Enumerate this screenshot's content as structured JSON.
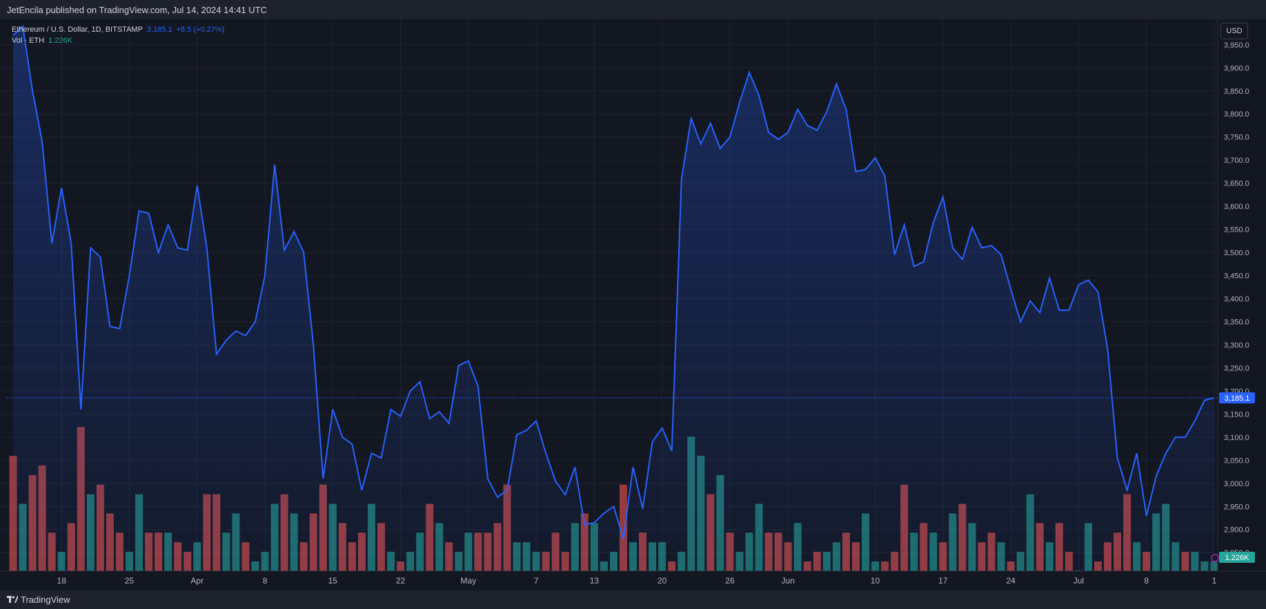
{
  "header": {
    "published": "JetEncila published on TradingView.com, Jul 14, 2024 14:41 UTC"
  },
  "legend": {
    "symbol": "Ethereum / U.S. Dollar, 1D, BITSTAMP",
    "price": "3,185.1",
    "change": "+8.5 (+0.27%)",
    "volume_label": "Vol · ETH",
    "volume_value": "1.226K"
  },
  "currency_button": "USD",
  "footer": {
    "brand": "TradingView"
  },
  "colors": {
    "line": "#2962ff",
    "vol_up": "#26a69a",
    "vol_down": "#ef5350",
    "background": "#131722"
  },
  "chart_data": {
    "type": "area",
    "series": [
      {
        "name": "Ethereum / U.S. Dollar",
        "values": [
          3970,
          3990,
          3850,
          3740,
          3520,
          3640,
          3520,
          3160,
          3510,
          3490,
          3340,
          3335,
          3450,
          3590,
          3585,
          3500,
          3560,
          3510,
          3505,
          3645,
          3510,
          3280,
          3310,
          3330,
          3320,
          3350,
          3450,
          3690,
          3505,
          3545,
          3500,
          3300,
          3010,
          3160,
          3100,
          3085,
          2985,
          3065,
          3055,
          3160,
          3145,
          3200,
          3220,
          3140,
          3155,
          3130,
          3255,
          3265,
          3210,
          3010,
          2970,
          2985,
          3105,
          3115,
          3135,
          3065,
          3005,
          2975,
          3035,
          2910,
          2915,
          2935,
          2950,
          2880,
          3035,
          2945,
          3090,
          3120,
          3070,
          3660,
          3790,
          3735,
          3780,
          3725,
          3750,
          3825,
          3890,
          3840,
          3760,
          3745,
          3760,
          3810,
          3775,
          3765,
          3805,
          3865,
          3810,
          3675,
          3680,
          3705,
          3665,
          3495,
          3560,
          3470,
          3480,
          3565,
          3620,
          3510,
          3485,
          3555,
          3510,
          3515,
          3495,
          3420,
          3350,
          3395,
          3370,
          3445,
          3375,
          3375,
          3430,
          3440,
          3415,
          3290,
          3055,
          2985,
          3065,
          2930,
          3015,
          3065,
          3100,
          3100,
          3135,
          3180,
          3185
        ]
      },
      {
        "name": "Vol · ETH",
        "values": [
          12,
          7,
          10,
          11,
          4,
          2,
          5,
          15,
          8,
          9,
          6,
          4,
          2,
          8,
          4,
          4,
          4,
          3,
          2,
          3,
          8,
          8,
          4,
          6,
          3,
          1,
          2,
          7,
          8,
          6,
          3,
          6,
          9,
          7,
          5,
          3,
          4,
          7,
          5,
          2,
          1,
          2,
          4,
          7,
          5,
          3,
          2,
          4,
          4,
          4,
          5,
          9,
          3,
          3,
          2,
          2,
          4,
          2,
          5,
          6,
          5,
          1,
          2,
          9,
          3,
          4,
          3,
          3,
          1,
          2,
          14,
          12,
          8,
          10,
          4,
          2,
          4,
          7,
          4,
          4,
          3,
          5,
          1,
          2,
          2,
          3,
          4,
          3,
          6,
          1,
          1,
          2,
          9,
          4,
          5,
          4,
          3,
          6,
          7,
          5,
          3,
          4,
          3,
          1,
          2,
          8,
          5,
          3,
          5,
          2,
          0,
          5,
          1,
          3,
          4,
          8,
          3,
          2,
          6,
          7,
          3,
          2,
          2,
          1,
          1
        ],
        "direction": [
          "d",
          "u",
          "d",
          "d",
          "d",
          "u",
          "d",
          "d",
          "u",
          "d",
          "d",
          "d",
          "u",
          "u",
          "d",
          "d",
          "u",
          "d",
          "d",
          "u",
          "d",
          "d",
          "u",
          "u",
          "d",
          "u",
          "u",
          "u",
          "d",
          "u",
          "d",
          "d",
          "d",
          "u",
          "d",
          "d",
          "d",
          "u",
          "d",
          "u",
          "d",
          "u",
          "u",
          "d",
          "u",
          "d",
          "u",
          "u",
          "d",
          "d",
          "d",
          "d",
          "u",
          "u",
          "u",
          "d",
          "d",
          "d",
          "u",
          "d",
          "u",
          "u",
          "u",
          "d",
          "u",
          "d",
          "u",
          "u",
          "d",
          "u",
          "u",
          "u",
          "d",
          "u",
          "d",
          "u",
          "u",
          "u",
          "d",
          "d",
          "d",
          "u",
          "d",
          "d",
          "u",
          "u",
          "d",
          "d",
          "u",
          "u",
          "d",
          "d",
          "d",
          "u",
          "d",
          "u",
          "d",
          "u",
          "d",
          "u",
          "d",
          "d",
          "u",
          "d",
          "u",
          "u",
          "d",
          "u",
          "d",
          "d",
          "u",
          "u",
          "d",
          "d",
          "d",
          "d",
          "u",
          "d",
          "u",
          "u",
          "u",
          "d",
          "u",
          "u",
          "u"
        ]
      }
    ],
    "x_ticks": [
      "18",
      "25",
      "Apr",
      "8",
      "15",
      "22",
      "May",
      "7",
      "13",
      "20",
      "26",
      "Jun",
      "10",
      "17",
      "24",
      "Jul",
      "8",
      "1"
    ],
    "x_tick_index": [
      5,
      12,
      19,
      26,
      33,
      40,
      47,
      54,
      60,
      67,
      74,
      80,
      89,
      96,
      103,
      110,
      117,
      124
    ],
    "y_ticks": [
      "3,950.0",
      "3,900.0",
      "3,850.0",
      "3,800.0",
      "3,750.0",
      "3,700.0",
      "3,650.0",
      "3,600.0",
      "3,550.0",
      "3,500.0",
      "3,450.0",
      "3,400.0",
      "3,350.0",
      "3,300.0",
      "3,250.0",
      "3,200.0",
      "3,150.0",
      "3,100.0",
      "3,050.0",
      "3,000.0",
      "2,950.0",
      "2,900.0",
      "2,850.0"
    ],
    "y_tick_values": [
      3950,
      3900,
      3850,
      3800,
      3750,
      3700,
      3650,
      3600,
      3550,
      3500,
      3450,
      3400,
      3350,
      3300,
      3250,
      3200,
      3150,
      3100,
      3050,
      3000,
      2950,
      2900,
      2850
    ],
    "ylim": [
      2810,
      4005
    ],
    "last_price": 3185.1,
    "last_price_label": "3,185.1",
    "last_volume_label": "1.226K",
    "grid": true
  }
}
